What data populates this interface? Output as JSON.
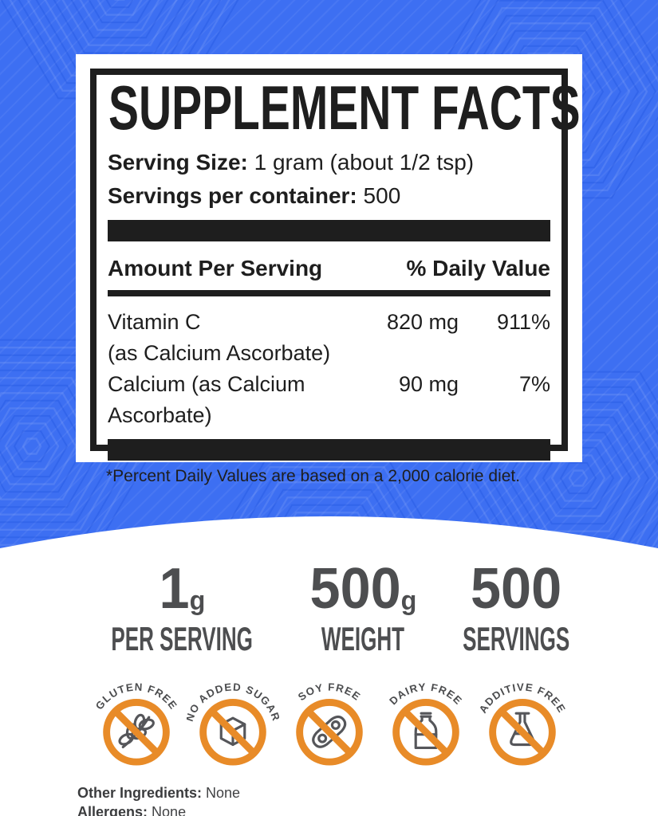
{
  "colors": {
    "background_blue": "#3d6ff2",
    "panel_black": "#1e1e1e",
    "stats_gray": "#4d4e50",
    "badge_orange": "#e88b28",
    "badge_glyph_gray": "#55565a"
  },
  "facts": {
    "title": "SUPPLEMENT FACTS",
    "serving_size_label": "Serving Size:",
    "serving_size_value": "1 gram (about 1/2 tsp)",
    "servings_label": "Servings per container:",
    "servings_value": "500",
    "amount_header": "Amount Per Serving",
    "dv_header": "% Daily Value",
    "rows": [
      {
        "name": "Vitamin C",
        "sub": "(as Calcium Ascorbate)",
        "amount": "820 mg",
        "dv": "911%"
      },
      {
        "name": "Calcium (as Calcium Ascorbate)",
        "amount": "90 mg",
        "dv": "7%"
      }
    ],
    "footnote": "*Percent Daily Values are based on a 2,000 calorie diet."
  },
  "stats": [
    {
      "value": "1",
      "unit": "g",
      "label": "PER SERVING"
    },
    {
      "value": "500",
      "unit": "g",
      "label": "WEIGHT"
    },
    {
      "value": "500",
      "unit": "",
      "label": "SERVINGS"
    }
  ],
  "badges": [
    {
      "label": "GLUTEN FREE",
      "icon": "wheat-icon"
    },
    {
      "label": "NO ADDED SUGAR",
      "icon": "sugar-cube-icon"
    },
    {
      "label": "SOY FREE",
      "icon": "soy-pod-icon"
    },
    {
      "label": "DAIRY FREE",
      "icon": "milk-bottle-icon"
    },
    {
      "label": "ADDITIVE FREE",
      "icon": "flask-icon"
    }
  ],
  "footer": {
    "other_ingredients_label": "Other Ingredients:",
    "other_ingredients_value": "None",
    "allergens_label": "Allergens:",
    "allergens_value": "None"
  }
}
